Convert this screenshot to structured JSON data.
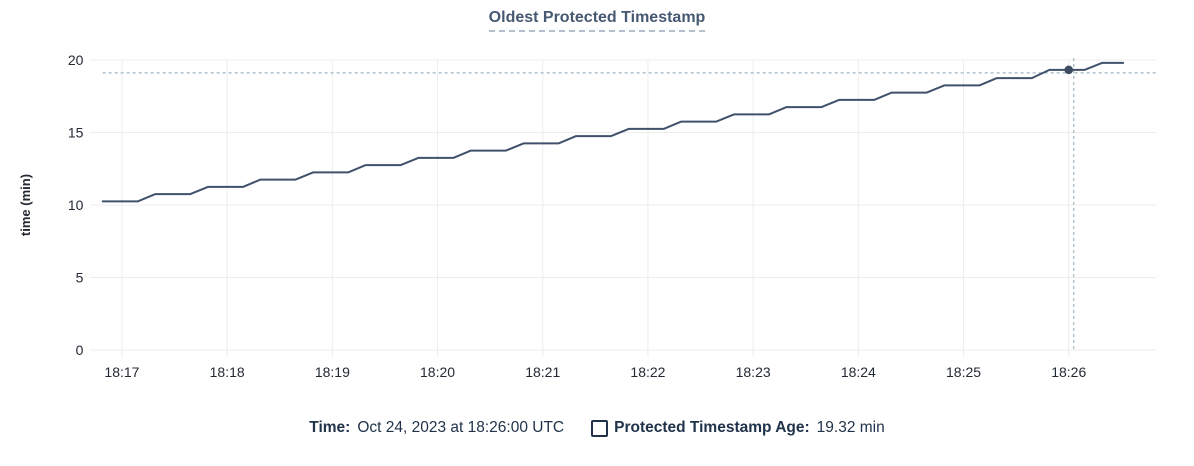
{
  "legend": {
    "time_label": "Time:",
    "time_value": "Oct 24, 2023 at 18:26:00 UTC",
    "series_label": "Protected Timestamp Age:",
    "series_value": "19.32 min"
  },
  "chart_data": {
    "type": "line",
    "title": "Oldest Protected Timestamp",
    "ylabel": "time (min)",
    "ylim": [
      0,
      20
    ],
    "yticks": [
      0,
      5,
      10,
      15,
      20
    ],
    "x_time_zero": "18:00:00",
    "x_domain_sec": [
      1002,
      1610
    ],
    "xticks": [
      {
        "sec": 1020,
        "label": "18:17"
      },
      {
        "sec": 1080,
        "label": "18:18"
      },
      {
        "sec": 1140,
        "label": "18:19"
      },
      {
        "sec": 1200,
        "label": "18:20"
      },
      {
        "sec": 1260,
        "label": "18:21"
      },
      {
        "sec": 1320,
        "label": "18:22"
      },
      {
        "sec": 1380,
        "label": "18:23"
      },
      {
        "sec": 1440,
        "label": "18:24"
      },
      {
        "sec": 1500,
        "label": "18:25"
      },
      {
        "sec": 1560,
        "label": "18:26"
      }
    ],
    "series": [
      {
        "name": "Protected Timestamp Age",
        "points": [
          [
            1009,
            10.25
          ],
          [
            1029,
            10.25
          ],
          [
            1039,
            10.75
          ],
          [
            1059,
            10.75
          ],
          [
            1069,
            11.25
          ],
          [
            1089,
            11.25
          ],
          [
            1099,
            11.75
          ],
          [
            1119,
            11.75
          ],
          [
            1129,
            12.25
          ],
          [
            1149,
            12.25
          ],
          [
            1159,
            12.75
          ],
          [
            1179,
            12.75
          ],
          [
            1189,
            13.25
          ],
          [
            1209,
            13.25
          ],
          [
            1219,
            13.75
          ],
          [
            1239,
            13.75
          ],
          [
            1249,
            14.25
          ],
          [
            1269,
            14.25
          ],
          [
            1279,
            14.75
          ],
          [
            1299,
            14.75
          ],
          [
            1309,
            15.25
          ],
          [
            1329,
            15.25
          ],
          [
            1339,
            15.75
          ],
          [
            1359,
            15.75
          ],
          [
            1369,
            16.25
          ],
          [
            1389,
            16.25
          ],
          [
            1399,
            16.75
          ],
          [
            1419,
            16.75
          ],
          [
            1429,
            17.25
          ],
          [
            1449,
            17.25
          ],
          [
            1459,
            17.75
          ],
          [
            1479,
            17.75
          ],
          [
            1489,
            18.25
          ],
          [
            1509,
            18.25
          ],
          [
            1519,
            18.75
          ],
          [
            1539,
            18.75
          ],
          [
            1549,
            19.32
          ],
          [
            1569,
            19.32
          ],
          [
            1579,
            19.8
          ],
          [
            1591,
            19.8
          ]
        ]
      }
    ],
    "hover_point": {
      "sec": 1560,
      "value_min": 19.32
    },
    "grid": true,
    "legend_position": "bottom",
    "colors": {
      "line": "#41516b",
      "dot": "#3d4c63",
      "grid": "#ededed",
      "crosshair": "#9fb6c4",
      "title": "#475872",
      "title_underline": "#b6c0cd",
      "legend_text": "#21334a",
      "tick_text": "#242a33"
    }
  }
}
